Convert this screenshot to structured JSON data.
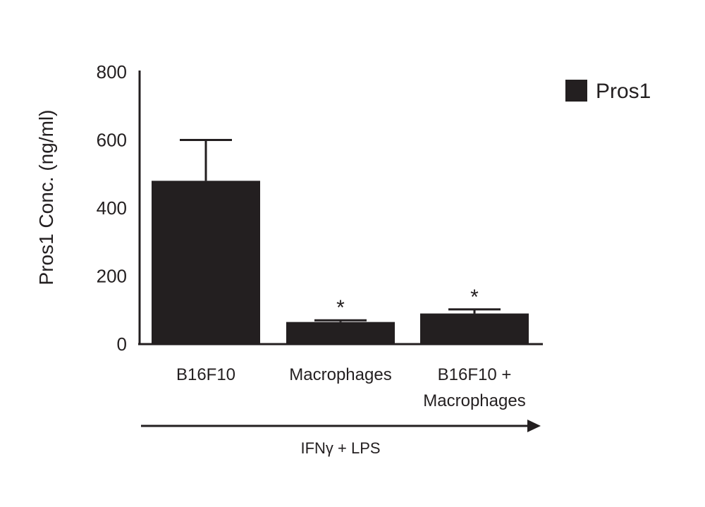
{
  "chart_data": {
    "type": "bar",
    "title": "",
    "xlabel": "",
    "ylabel": "Pros1 Conc. (ng/ml)",
    "ylim": [
      0,
      800
    ],
    "yticks": [
      0,
      200,
      400,
      600,
      800
    ],
    "grid": false,
    "legend_position": "top-right",
    "categories": [
      {
        "line1": "B16F10",
        "line2": ""
      },
      {
        "line1": "Macrophages",
        "line2": ""
      },
      {
        "line1": "B16F10 +",
        "line2": "Macrophages"
      }
    ],
    "series": [
      {
        "name": "Pros1",
        "color": "#231f20",
        "values": [
          480,
          65,
          90
        ],
        "errors": [
          120,
          5,
          12
        ],
        "annotations": [
          "",
          "*",
          "*"
        ]
      }
    ],
    "treatment": {
      "label": "IFNγ + LPS",
      "style": "arrow-right"
    }
  }
}
